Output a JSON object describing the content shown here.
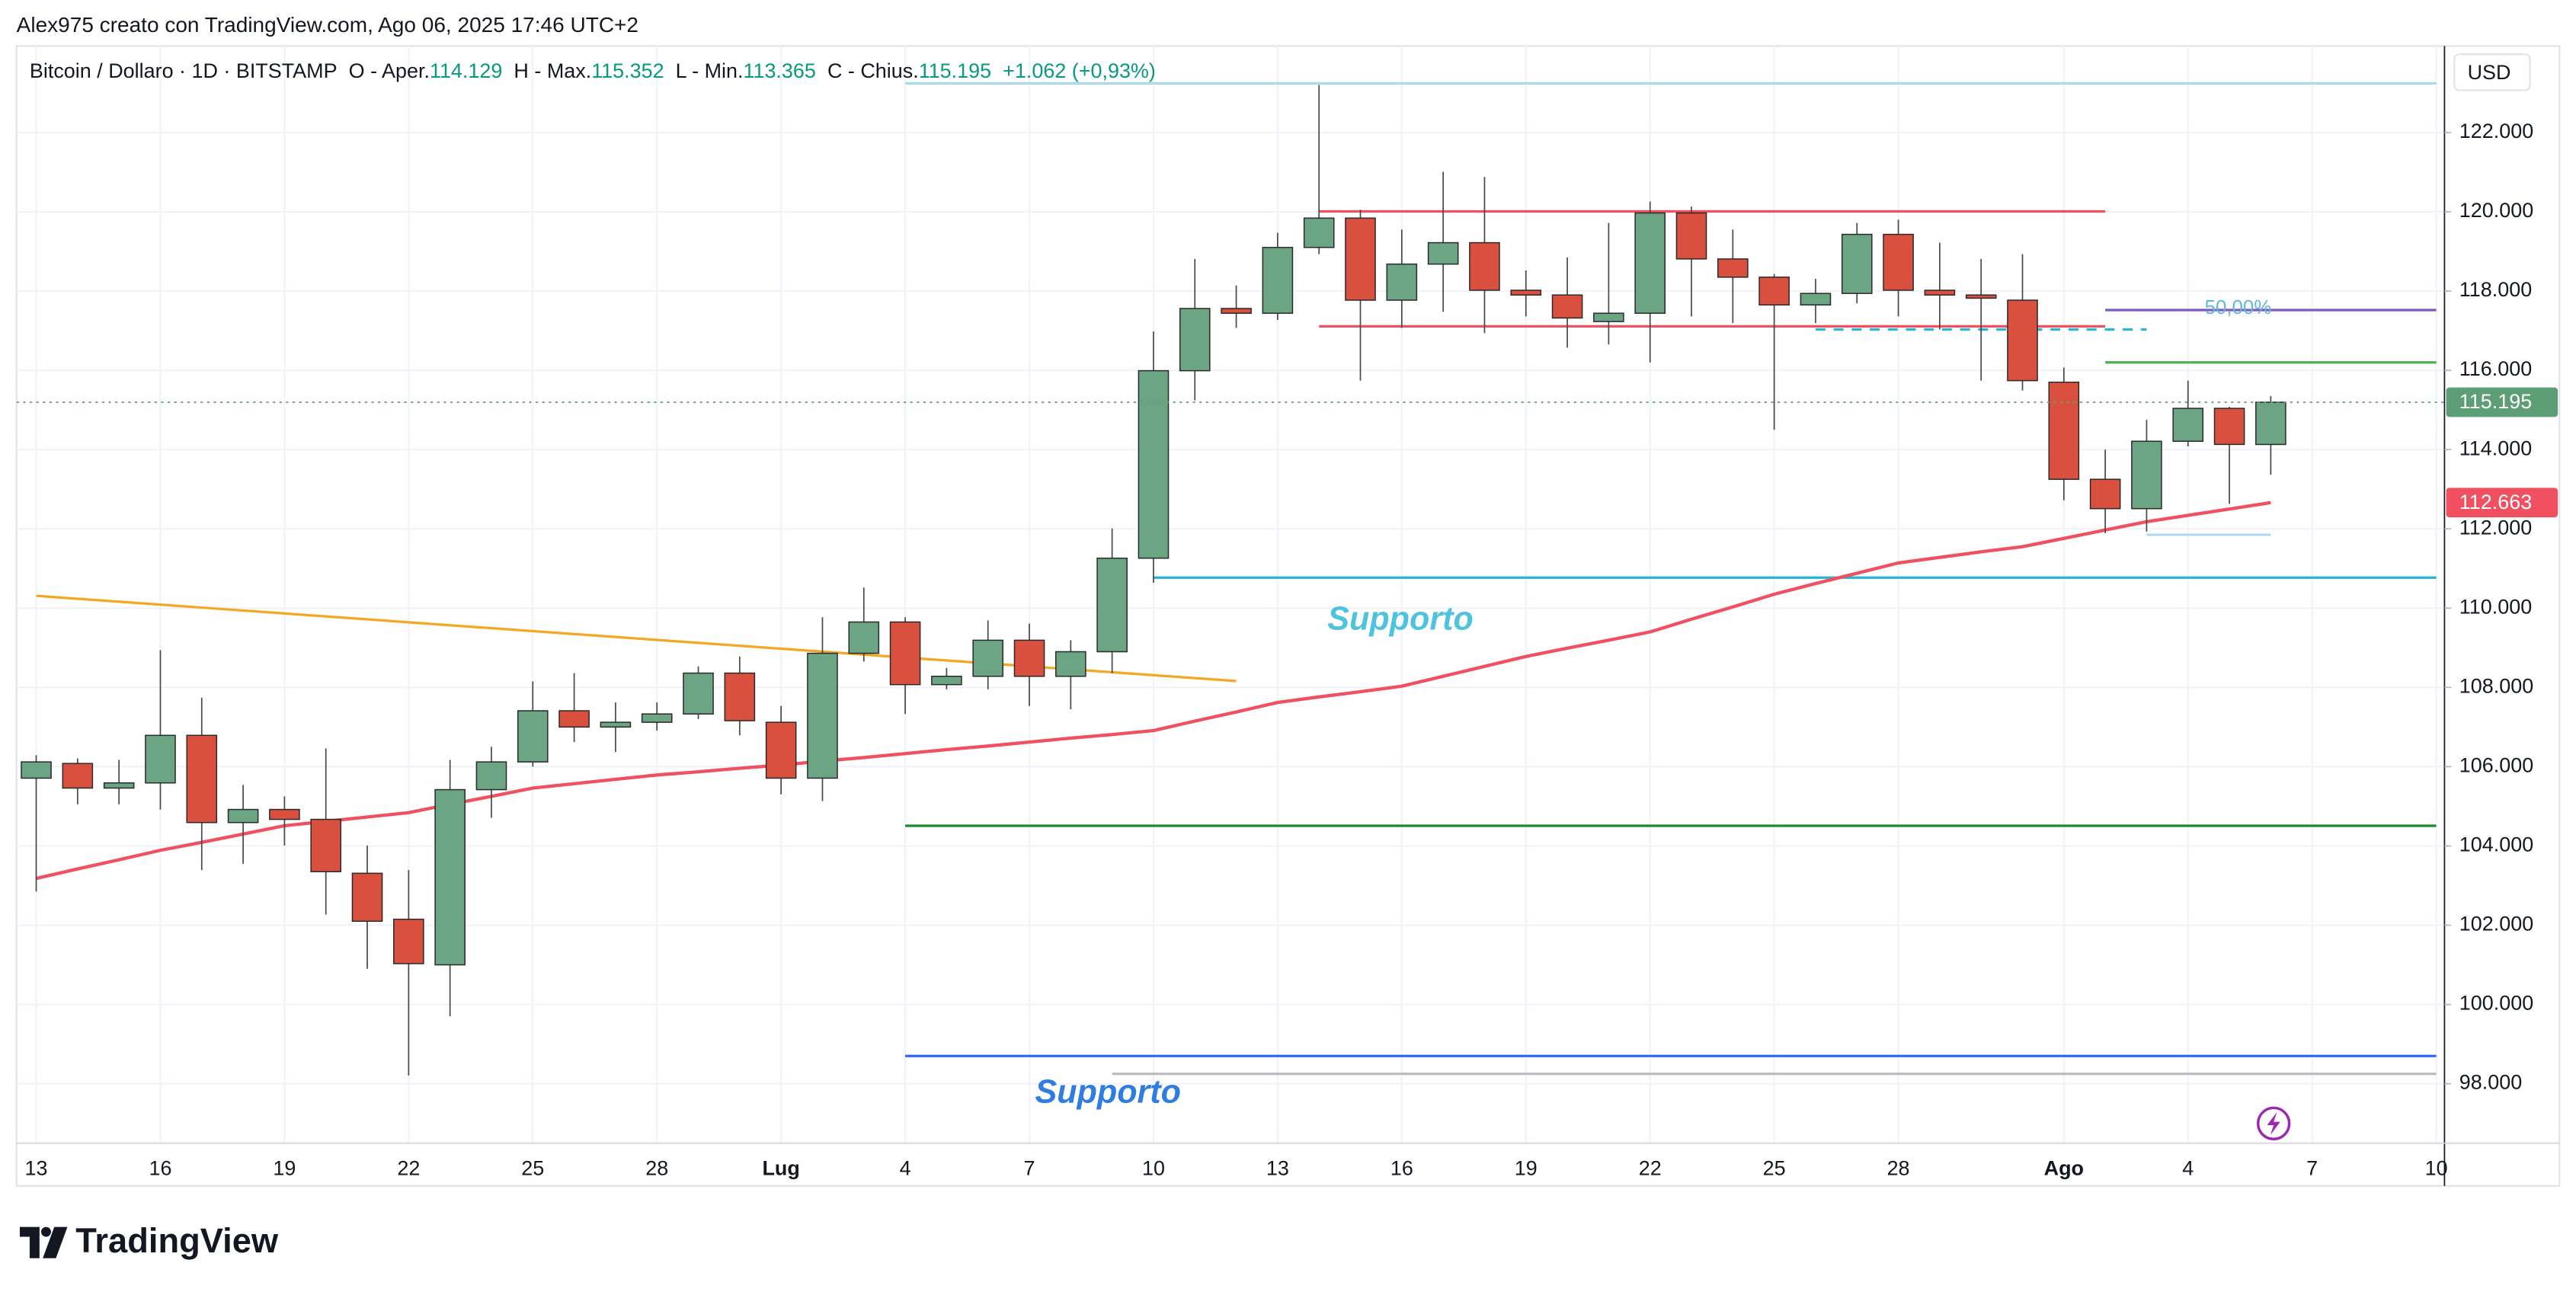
{
  "header": {
    "title": "Alex975 creato con TradingView.com, Ago 06, 2025 17:46 UTC+2"
  },
  "footer": {
    "brand": "TradingView"
  },
  "chart_data": {
    "type": "candlestick",
    "currency": "USD",
    "legend": {
      "symbol": "Bitcoin / Dollaro · 1D · BITSTAMP",
      "items": [
        {
          "key": "O - Aper.",
          "value": "114.129"
        },
        {
          "key": "H - Max.",
          "value": "115.352"
        },
        {
          "key": "L - Min.",
          "value": "113.365"
        },
        {
          "key": "C - Chius.",
          "value": "115.195"
        }
      ],
      "change": "+1.062 (+0,93%)",
      "value_color": "#089981"
    },
    "x": [
      "2025-06-13",
      "2025-06-14",
      "2025-06-15",
      "2025-06-16",
      "2025-06-17",
      "2025-06-18",
      "2025-06-19",
      "2025-06-20",
      "2025-06-21",
      "2025-06-22",
      "2025-06-23",
      "2025-06-24",
      "2025-06-25",
      "2025-06-26",
      "2025-06-27",
      "2025-06-28",
      "2025-06-29",
      "2025-06-30",
      "2025-07-01",
      "2025-07-02",
      "2025-07-03",
      "2025-07-04",
      "2025-07-05",
      "2025-07-06",
      "2025-07-07",
      "2025-07-08",
      "2025-07-09",
      "2025-07-10",
      "2025-07-11",
      "2025-07-12",
      "2025-07-13",
      "2025-07-14",
      "2025-07-15",
      "2025-07-16",
      "2025-07-17",
      "2025-07-18",
      "2025-07-19",
      "2025-07-20",
      "2025-07-21",
      "2025-07-22",
      "2025-07-23",
      "2025-07-24",
      "2025-07-25",
      "2025-07-26",
      "2025-07-27",
      "2025-07-28",
      "2025-07-29",
      "2025-07-30",
      "2025-07-31",
      "2025-08-01",
      "2025-08-02",
      "2025-08-03",
      "2025-08-04",
      "2025-08-05",
      "2025-08-06"
    ],
    "open": [
      105710,
      106080,
      105460,
      105590,
      106790,
      104590,
      104920,
      104670,
      103310,
      102150,
      101000,
      105420,
      106120,
      107410,
      107000,
      107120,
      107330,
      108360,
      107120,
      105710,
      108860,
      109650,
      108070,
      108280,
      109190,
      108280,
      108900,
      111260,
      115990,
      117560,
      117440,
      119100,
      119840,
      117770,
      118680,
      119220,
      118020,
      117900,
      117230,
      117440,
      119970,
      118810,
      118350,
      117650,
      117940,
      119430,
      118020,
      117900,
      117770,
      115700,
      113250,
      112510,
      114210,
      115040,
      114129
    ],
    "high": [
      106290,
      106210,
      106170,
      108940,
      107740,
      105540,
      105250,
      106460,
      104010,
      103390,
      106170,
      106500,
      108150,
      108360,
      107620,
      107620,
      108530,
      108780,
      107530,
      109770,
      110520,
      109770,
      108490,
      109690,
      109610,
      109190,
      112010,
      116980,
      118810,
      118140,
      119470,
      123200,
      120050,
      119550,
      121010,
      120880,
      118520,
      118850,
      119720,
      120260,
      120130,
      119550,
      118430,
      118310,
      119720,
      119800,
      119220,
      118810,
      118930,
      116070,
      114000,
      114750,
      115740,
      115080,
      115352
    ],
    "low": [
      102850,
      105050,
      105050,
      104920,
      103390,
      103550,
      104010,
      102270,
      100900,
      98210,
      99700,
      104710,
      106000,
      106620,
      106370,
      106910,
      107200,
      106790,
      105300,
      105130,
      108650,
      107330,
      107950,
      107950,
      107530,
      107450,
      108360,
      110640,
      115240,
      117070,
      117270,
      118930,
      115740,
      117070,
      117480,
      116940,
      117360,
      116570,
      116650,
      116200,
      117360,
      117190,
      114500,
      117190,
      117690,
      117360,
      117030,
      115740,
      115490,
      112720,
      111890,
      111930,
      114080,
      112630,
      113365
    ],
    "close": [
      106120,
      105460,
      105590,
      106790,
      104590,
      104920,
      104670,
      103350,
      102100,
      101030,
      105420,
      106120,
      107410,
      107000,
      107120,
      107330,
      108360,
      107160,
      105710,
      108860,
      109650,
      108070,
      108280,
      109190,
      108280,
      108900,
      111260,
      115990,
      117560,
      117440,
      119100,
      119840,
      117770,
      118680,
      119220,
      118020,
      117900,
      117320,
      117440,
      119970,
      118810,
      118350,
      117650,
      117940,
      119430,
      118020,
      117900,
      117820,
      115740,
      113250,
      112510,
      114210,
      115040,
      114130,
      115195
    ],
    "up_color": "#6ba583",
    "down_color": "#d9503f",
    "ma": {
      "color": "#f0505f",
      "values": [
        103180,
        103420,
        103650,
        103890,
        104090,
        104300,
        104510,
        104620,
        104730,
        104840,
        105050,
        105250,
        105460,
        105570,
        105680,
        105790,
        105870,
        105960,
        106040,
        106140,
        106230,
        106330,
        106430,
        106520,
        106620,
        106720,
        106810,
        106910,
        107150,
        107380,
        107620,
        107760,
        107890,
        108030,
        108280,
        108530,
        108780,
        108990,
        109190,
        109400,
        109720,
        110030,
        110350,
        110620,
        110880,
        111140,
        111280,
        111420,
        111550,
        111760,
        111970,
        112180,
        112340,
        112500,
        112663
      ]
    },
    "xlim": [
      "2025-06-13",
      "2025-08-10"
    ],
    "xticks": [
      {
        "value": "2025-06-13",
        "label": "13"
      },
      {
        "value": "2025-06-16",
        "label": "16"
      },
      {
        "value": "2025-06-19",
        "label": "19"
      },
      {
        "value": "2025-06-22",
        "label": "22"
      },
      {
        "value": "2025-06-25",
        "label": "25"
      },
      {
        "value": "2025-06-28",
        "label": "28"
      },
      {
        "value": "2025-07-01",
        "label": "Lug"
      },
      {
        "value": "2025-07-04",
        "label": "4"
      },
      {
        "value": "2025-07-07",
        "label": "7"
      },
      {
        "value": "2025-07-10",
        "label": "10"
      },
      {
        "value": "2025-07-13",
        "label": "13"
      },
      {
        "value": "2025-07-16",
        "label": "16"
      },
      {
        "value": "2025-07-19",
        "label": "19"
      },
      {
        "value": "2025-07-22",
        "label": "22"
      },
      {
        "value": "2025-07-25",
        "label": "25"
      },
      {
        "value": "2025-07-28",
        "label": "28"
      },
      {
        "value": "2025-08-01",
        "label": "Ago"
      },
      {
        "value": "2025-08-04",
        "label": "4"
      },
      {
        "value": "2025-08-07",
        "label": "7"
      },
      {
        "value": "2025-08-10",
        "label": "10"
      }
    ],
    "ylim": [
      96500,
      124100
    ],
    "yticks": [
      {
        "value": 98000,
        "label": "98.000"
      },
      {
        "value": 100000,
        "label": "100.000"
      },
      {
        "value": 102000,
        "label": "102.000"
      },
      {
        "value": 104000,
        "label": "104.000"
      },
      {
        "value": 106000,
        "label": "106.000"
      },
      {
        "value": 108000,
        "label": "108.000"
      },
      {
        "value": 110000,
        "label": "110.000"
      },
      {
        "value": 112000,
        "label": "112.000"
      },
      {
        "value": 114000,
        "label": "114.000"
      },
      {
        "value": 116000,
        "label": "116.000"
      },
      {
        "value": 118000,
        "label": "118.000"
      },
      {
        "value": 120000,
        "label": "120.000"
      },
      {
        "value": 122000,
        "label": "122.000"
      }
    ],
    "grid": true,
    "price_labels": [
      {
        "value": 115195,
        "label": "115.195",
        "color": "#5e9e77"
      },
      {
        "value": 112663,
        "label": "112.663",
        "color": "#f0505f"
      }
    ],
    "drawings": [
      {
        "color": "#a9dce8",
        "x": [
          "2025-07-04",
          "2025-08-10"
        ],
        "y": [
          123240,
          123240
        ]
      },
      {
        "color": "#f0505f",
        "x": [
          "2025-07-14",
          "2025-08-02"
        ],
        "y": [
          120010,
          120010
        ]
      },
      {
        "color": "#f0505f",
        "x": [
          "2025-07-14",
          "2025-08-02"
        ],
        "y": [
          117110,
          117110
        ]
      },
      {
        "color": "#29b6d4",
        "x": [
          "2025-07-26",
          "2025-08-03"
        ],
        "y": [
          117030,
          117030
        ],
        "dashed": true
      },
      {
        "color": "#7e57c2",
        "x": [
          "2025-08-02",
          "2025-08-10"
        ],
        "y": [
          117520,
          117520
        ]
      },
      {
        "color": "#4caf50",
        "x": [
          "2025-08-02",
          "2025-08-10"
        ],
        "y": [
          116200,
          116200
        ]
      },
      {
        "color": "#b3d9f2",
        "x": [
          "2025-08-03",
          "2025-08-06"
        ],
        "y": [
          111850,
          111850
        ]
      },
      {
        "color": "#26b5cf",
        "x": [
          "2025-07-10",
          "2025-08-10"
        ],
        "y": [
          110770,
          110770
        ]
      },
      {
        "color": "#1b8a2e",
        "x": [
          "2025-07-04",
          "2025-08-10"
        ],
        "y": [
          104508,
          104508
        ]
      },
      {
        "color": "#2962ff",
        "x": [
          "2025-07-04",
          "2025-08-10"
        ],
        "y": [
          98700,
          98700
        ]
      },
      {
        "color": "#bdbdbd",
        "x": [
          "2025-07-09",
          "2025-08-10"
        ],
        "y": [
          98250,
          98250
        ]
      },
      {
        "color": "#f5a623",
        "x": [
          "2025-06-13",
          "2025-07-12"
        ],
        "y": [
          110310,
          108160
        ]
      }
    ],
    "annotations": [
      {
        "text": "Supporto",
        "color": "#4dc3dd"
      },
      {
        "text": "Supporto",
        "color": "#2f7de1"
      },
      {
        "text": "50,00%",
        "color": "#5fb8e0"
      }
    ]
  }
}
